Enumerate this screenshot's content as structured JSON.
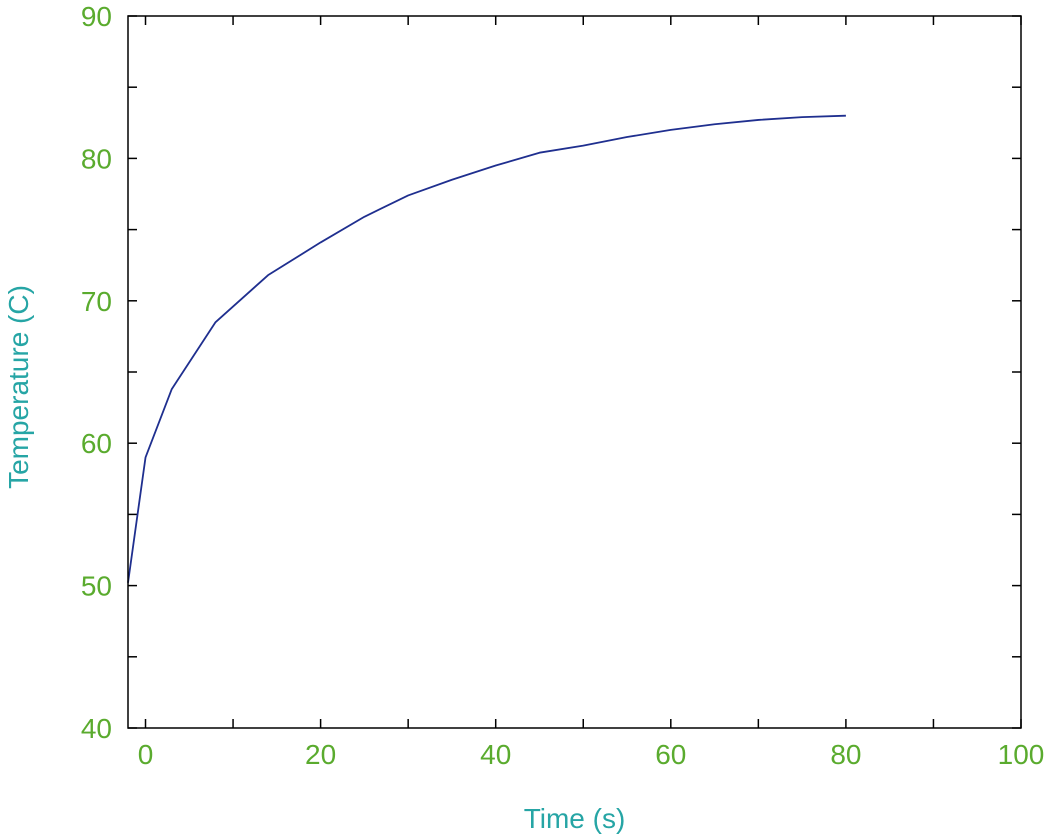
{
  "chart_data": {
    "type": "line",
    "title": "",
    "xlabel": "Time (s)",
    "ylabel": "Temperature (C)",
    "xlim": [
      -2,
      100
    ],
    "ylim": [
      40,
      90
    ],
    "xticks": [
      0,
      20,
      40,
      60,
      80,
      100
    ],
    "yticks": [
      40,
      50,
      60,
      70,
      80,
      90
    ],
    "x_minor_ticks": [
      10,
      30,
      50,
      70,
      90
    ],
    "y_minor_ticks": [
      45,
      55,
      65,
      75,
      85
    ],
    "grid": false,
    "legend": "none",
    "series": [
      {
        "x": [
          -2,
          0,
          3,
          8,
          14,
          20,
          25,
          30,
          35,
          40,
          45,
          50,
          55,
          60,
          65,
          70,
          75,
          80
        ],
        "y": [
          50.2,
          59.0,
          63.8,
          68.5,
          71.8,
          74.1,
          75.9,
          77.4,
          78.5,
          79.5,
          80.4,
          80.9,
          81.5,
          82.0,
          82.4,
          82.7,
          82.9,
          83.0
        ],
        "color": "#1f2f8f"
      }
    ],
    "colors": {
      "tick_labels": "#5aab2e",
      "axis_titles": "#26a5a5",
      "axes": "#000000"
    }
  }
}
